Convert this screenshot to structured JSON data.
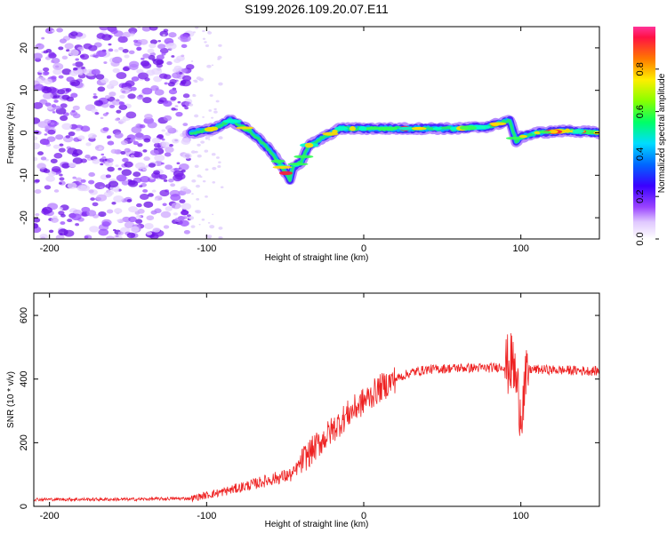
{
  "title": "S199.2026.109.20.07.E11",
  "colors": {
    "snr_line": "#ee2222",
    "scatter": "#7a22ee",
    "frame": "#000000"
  },
  "chart_data": [
    {
      "type": "heatmap",
      "name": "spectrogram",
      "xlabel": "Height of straight line (km)",
      "ylabel": "Frequency (Hz)",
      "xlim": [
        -210,
        150
      ],
      "ylim": [
        -25,
        25
      ],
      "xticks": [
        -200,
        -100,
        0,
        100
      ],
      "yticks": [
        -20,
        -10,
        0,
        10,
        20
      ],
      "ridge": {
        "x": [
          -110,
          -95,
          -85,
          -75,
          -68,
          -60,
          -52,
          -47,
          -45,
          -40,
          -35,
          -25,
          -15,
          0,
          20,
          40,
          60,
          80,
          93,
          97,
          100,
          110,
          130,
          150
        ],
        "y": [
          0,
          1,
          3,
          1,
          -1,
          -4,
          -8,
          -11,
          -8,
          -7,
          -3,
          -1,
          1,
          1,
          1,
          1,
          1,
          1.5,
          3,
          -2,
          -1,
          0,
          0.5,
          0
        ]
      },
      "colorbar": {
        "label": "Normalized spectral amplitude",
        "ticks": [
          0.0,
          0.2,
          0.4,
          0.6,
          0.8
        ],
        "tick_labels": [
          "0.0",
          "0.2",
          "0.4",
          "0.6",
          "0.8"
        ],
        "range": [
          0,
          1
        ]
      }
    },
    {
      "type": "line",
      "name": "snr",
      "xlabel": "Height of straight line (km)",
      "ylabel": "SNR (10 * v/v)",
      "xlim": [
        -210,
        150
      ],
      "ylim": [
        0,
        670
      ],
      "xticks": [
        -200,
        -100,
        0,
        100
      ],
      "yticks": [
        0,
        200,
        400,
        600
      ],
      "trend": {
        "x": [
          -210,
          -150,
          -110,
          -90,
          -70,
          -55,
          -45,
          -40,
          -30,
          -20,
          -10,
          0,
          10,
          20,
          30,
          40,
          60,
          80,
          90,
          95,
          100,
          105,
          110,
          150
        ],
        "y": [
          22,
          22,
          25,
          45,
          70,
          90,
          100,
          140,
          190,
          240,
          290,
          330,
          370,
          400,
          420,
          430,
          435,
          435,
          440,
          450,
          300,
          430,
          430,
          425
        ]
      }
    }
  ]
}
